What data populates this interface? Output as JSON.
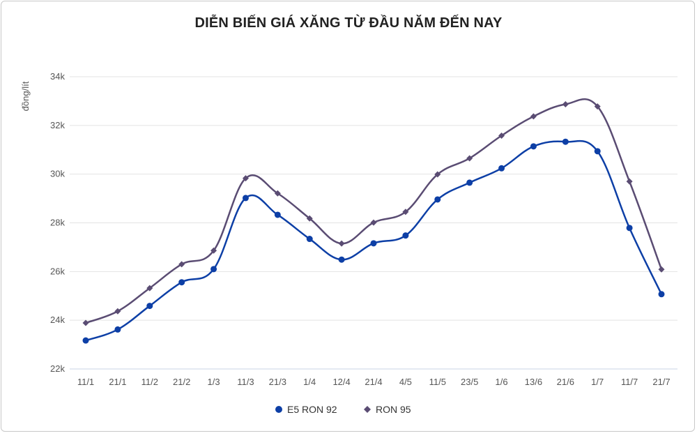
{
  "chart_data": {
    "type": "line",
    "title": "DIỄN BIẾN GIÁ XĂNG TỪ ĐẦU NĂM ĐẾN NAY",
    "xlabel": "",
    "ylabel": "đồng/lít",
    "categories": [
      "11/1",
      "21/1",
      "11/2",
      "21/2",
      "1/3",
      "11/3",
      "21/3",
      "1/4",
      "12/4",
      "21/4",
      "4/5",
      "11/5",
      "23/5",
      "1/6",
      "13/6",
      "21/6",
      "1/7",
      "11/7",
      "21/7"
    ],
    "ylim": [
      22000,
      34000
    ],
    "yticks": [
      22000,
      24000,
      26000,
      28000,
      30000,
      32000,
      34000
    ],
    "ytick_labels": [
      "22k",
      "24k",
      "26k",
      "28k",
      "30k",
      "32k",
      "34k"
    ],
    "grid": true,
    "legend_position": "bottom",
    "series": [
      {
        "name": "E5 RON 92",
        "color": "#0d3fa6",
        "marker": "circle",
        "values": [
          23170,
          23620,
          24590,
          25560,
          26100,
          29020,
          28330,
          27340,
          26490,
          27160,
          27480,
          28960,
          29650,
          30240,
          31140,
          31330,
          30940,
          27790,
          25070
        ]
      },
      {
        "name": "RON 95",
        "color": "#5a4c73",
        "marker": "diamond",
        "values": [
          23890,
          24370,
          25320,
          26300,
          26860,
          29830,
          29210,
          28180,
          27150,
          28010,
          28450,
          29990,
          30650,
          31580,
          32370,
          32870,
          32780,
          29700,
          26090
        ]
      }
    ]
  }
}
